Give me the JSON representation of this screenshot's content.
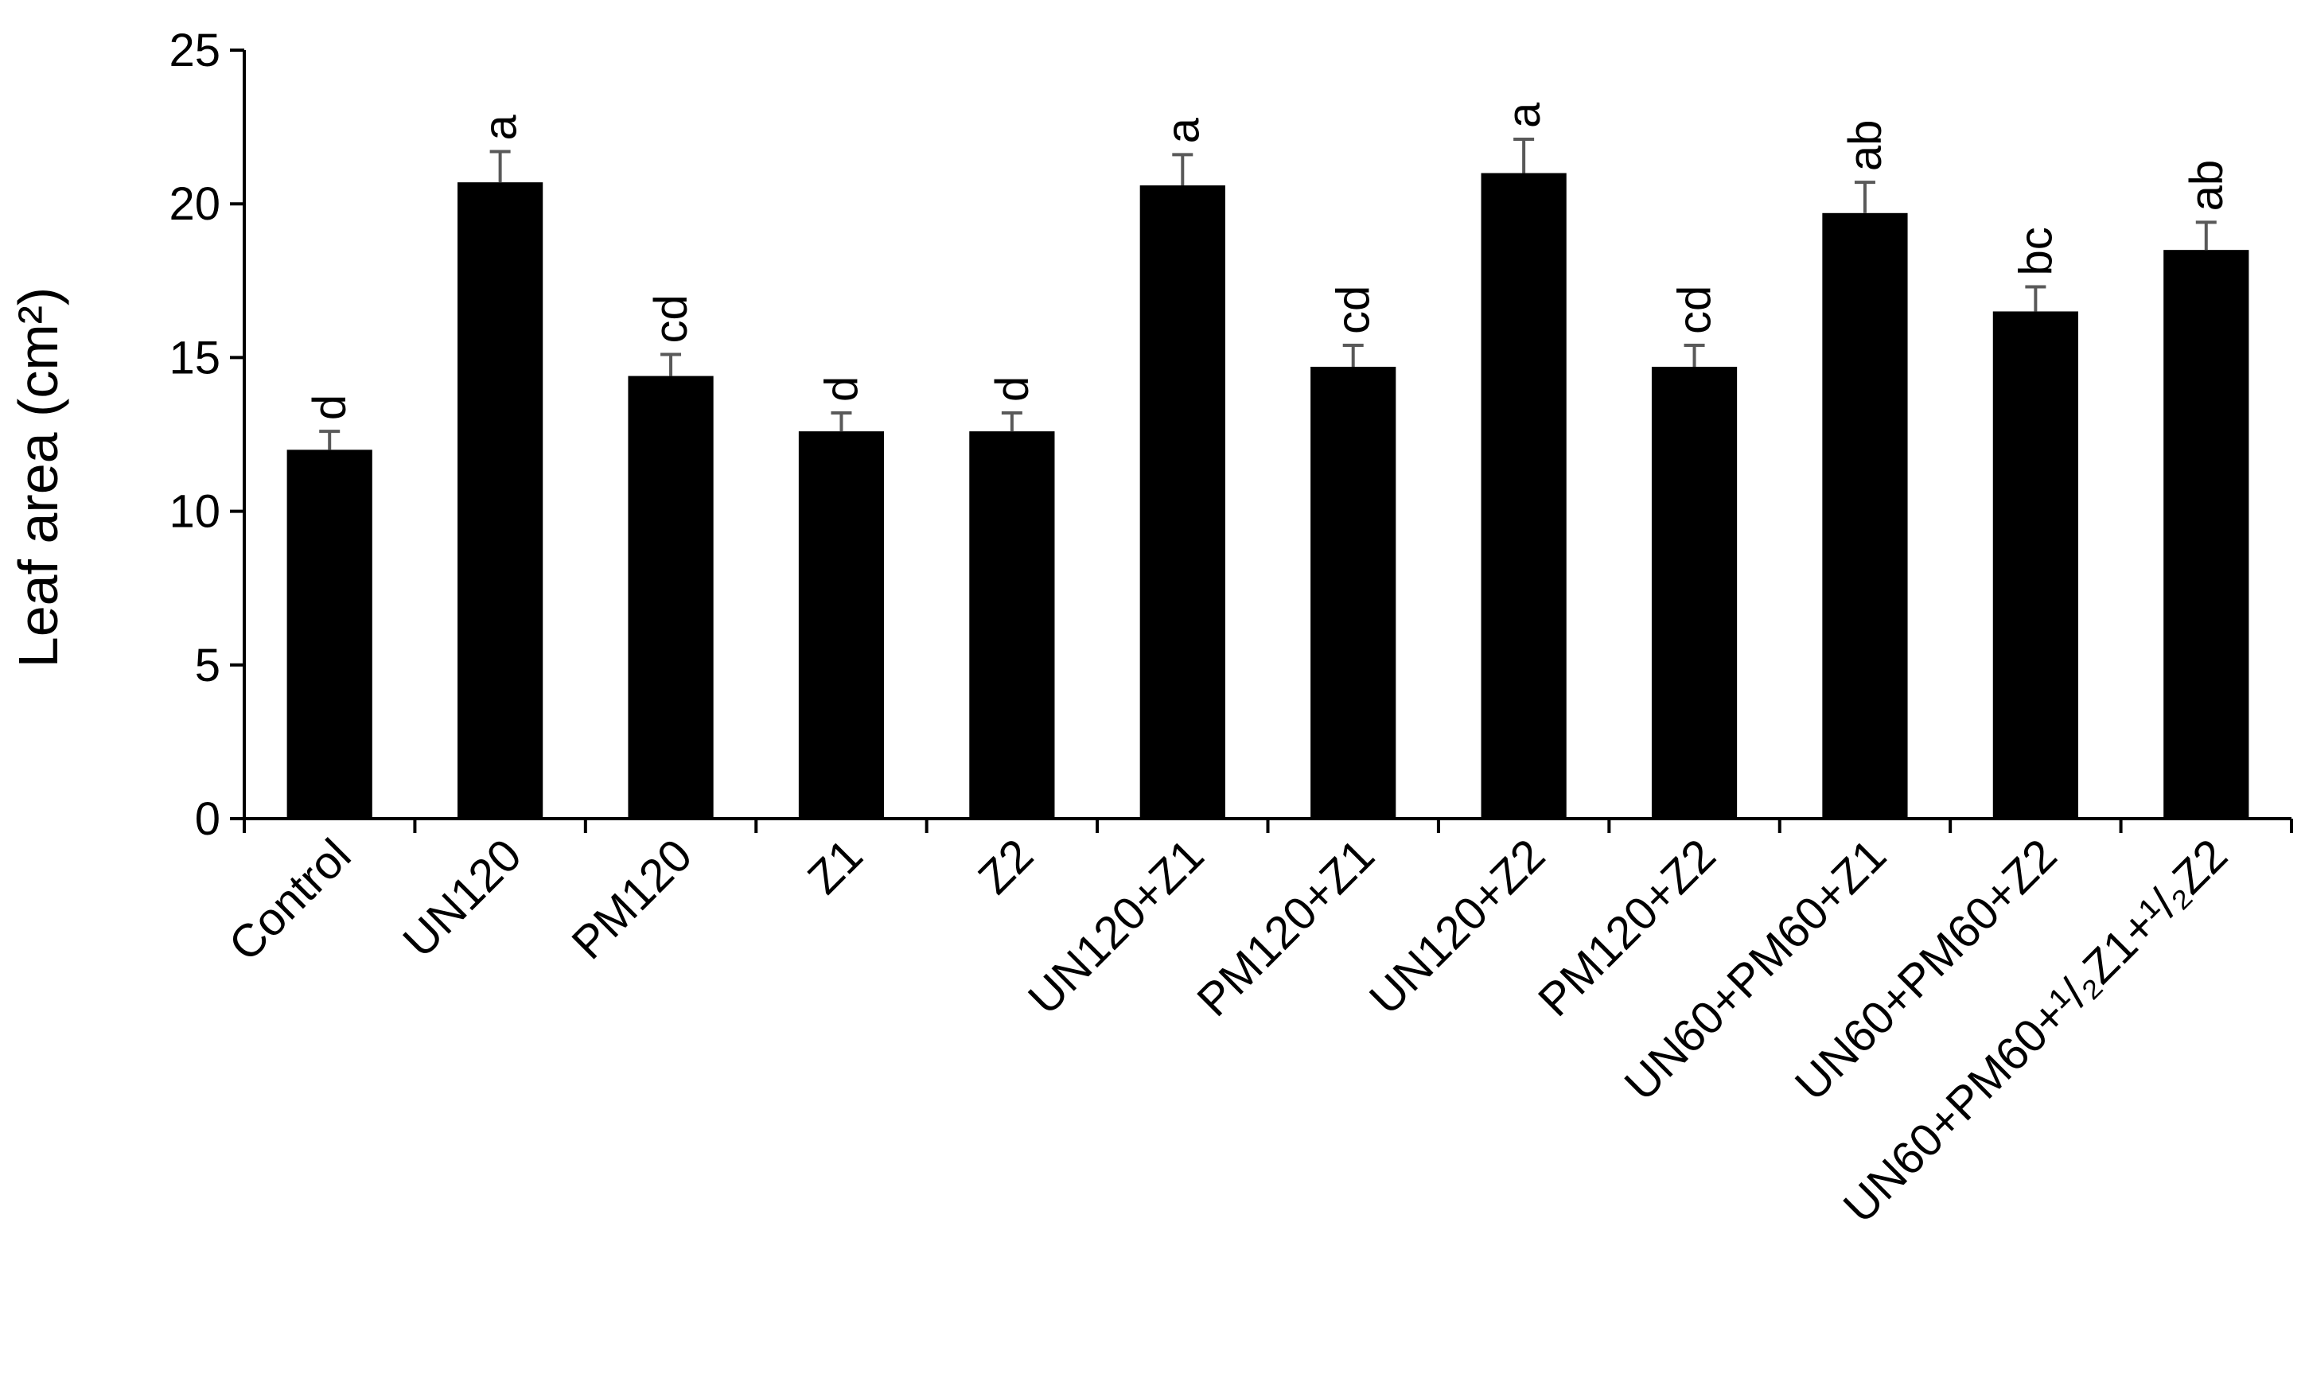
{
  "chart_data": {
    "type": "bar",
    "ylabel": "Leaf area (cm²)",
    "xlabel": "",
    "ylim": [
      0,
      25
    ],
    "yticks": [
      0,
      5,
      10,
      15,
      20,
      25
    ],
    "grid": false,
    "categories": [
      "Control",
      "UN120",
      "PM120",
      "Z1",
      "Z2",
      "UN120+Z1",
      "PM120+Z1",
      "UN120+Z2",
      "PM120+Z2",
      "UN60+PM60+Z1",
      "UN60+PM60+Z2",
      "UN60+PM60+¹/₂Z1+¹/₂Z2"
    ],
    "values": [
      12.0,
      20.7,
      14.4,
      12.6,
      12.6,
      20.6,
      14.7,
      21.0,
      14.7,
      19.7,
      16.5,
      18.5
    ],
    "errors": [
      0.6,
      1.0,
      0.7,
      0.6,
      0.6,
      1.0,
      0.7,
      1.1,
      0.7,
      1.0,
      0.8,
      0.9
    ],
    "significance": [
      "d",
      "a",
      "cd",
      "d",
      "d",
      "a",
      "cd",
      "a",
      "cd",
      "ab",
      "bc",
      "ab"
    ],
    "bar_color": "#000000",
    "error_bar_color": "#595959"
  }
}
